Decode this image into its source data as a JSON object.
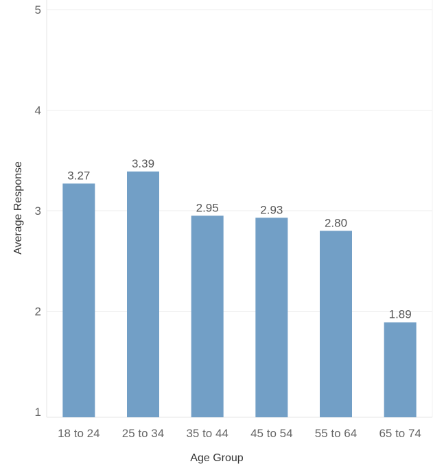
{
  "chart_data": {
    "type": "bar",
    "categories": [
      "18 to 24",
      "25 to 34",
      "35 to 44",
      "45 to 54",
      "55 to 64",
      "65 to 74"
    ],
    "values": [
      3.27,
      3.39,
      2.95,
      2.93,
      2.8,
      1.89
    ],
    "data_labels": [
      "3.27",
      "3.39",
      "2.95",
      "2.93",
      "2.80",
      "1.89"
    ],
    "xlabel": "Age Group",
    "ylabel": "Average Response",
    "ylim": [
      1,
      5
    ],
    "yticks": [
      1,
      2,
      3,
      4,
      5
    ],
    "grid": true,
    "bar_color": "#729fc6"
  }
}
